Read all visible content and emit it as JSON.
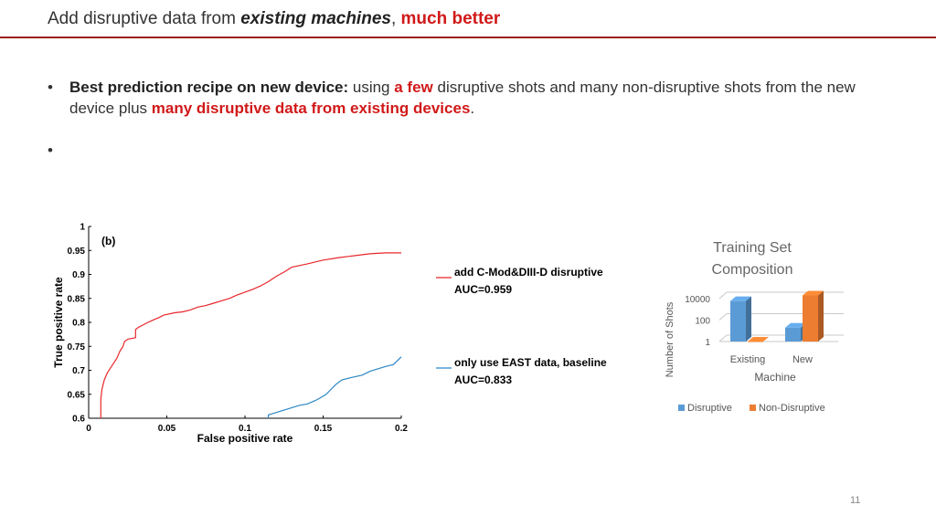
{
  "header": {
    "title_plain": "Add disruptive data from ",
    "title_emphasis": "existing machines",
    "title_comma": ", ",
    "title_highlight": "much better"
  },
  "bullets": {
    "bullet_glyph": "•",
    "b1_bold": "Best prediction recipe on new device:",
    "b1_text1": " using ",
    "b1_red1": "a few",
    "b1_text2": " disruptive shots and many non-disruptive shots from the new device plus ",
    "b1_red2": "many disruptive data from existing devices",
    "b1_text3": "."
  },
  "page_number": "11",
  "colors": {
    "accent_red": "#d11919",
    "rule": "#9b1b1f",
    "roc_red": "#e8262b",
    "roc_blue": "#2b86c5",
    "bar_blue": "#5b9bd5",
    "bar_orange": "#ed7d31"
  },
  "chart_data": [
    {
      "type": "line",
      "panel_label": "(b)",
      "xlabel": "False positive rate",
      "ylabel": "True positive rate",
      "xlim": [
        0,
        0.2
      ],
      "ylim": [
        0.6,
        1.0
      ],
      "x_ticks": [
        "0",
        "0.05",
        "0.1",
        "0.15",
        "0.2"
      ],
      "y_ticks": [
        "0.6",
        "0.65",
        "0.7",
        "0.75",
        "0.8",
        "0.85",
        "0.9",
        "0.95",
        "1"
      ],
      "grid": false,
      "series": [
        {
          "name": "add C-Mod&DIII-D disruptive",
          "auc_label": "AUC=0.959",
          "color": "#e8262b",
          "points": [
            [
              0.0078,
              0.6
            ],
            [
              0.0078,
              0.64
            ],
            [
              0.0085,
              0.66
            ],
            [
              0.01,
              0.68
            ],
            [
              0.012,
              0.695
            ],
            [
              0.014,
              0.705
            ],
            [
              0.016,
              0.715
            ],
            [
              0.018,
              0.725
            ],
            [
              0.02,
              0.74
            ],
            [
              0.022,
              0.75
            ],
            [
              0.023,
              0.76
            ],
            [
              0.025,
              0.765
            ],
            [
              0.03,
              0.768
            ],
            [
              0.03,
              0.78
            ],
            [
              0.03,
              0.785
            ],
            [
              0.032,
              0.79
            ],
            [
              0.035,
              0.795
            ],
            [
              0.038,
              0.8
            ],
            [
              0.04,
              0.803
            ],
            [
              0.042,
              0.806
            ],
            [
              0.045,
              0.81
            ],
            [
              0.048,
              0.815
            ],
            [
              0.055,
              0.82
            ],
            [
              0.06,
              0.822
            ],
            [
              0.065,
              0.826
            ],
            [
              0.07,
              0.832
            ],
            [
              0.075,
              0.835
            ],
            [
              0.08,
              0.84
            ],
            [
              0.085,
              0.845
            ],
            [
              0.09,
              0.85
            ],
            [
              0.095,
              0.857
            ],
            [
              0.1,
              0.863
            ],
            [
              0.105,
              0.869
            ],
            [
              0.11,
              0.876
            ],
            [
              0.115,
              0.885
            ],
            [
              0.12,
              0.896
            ],
            [
              0.125,
              0.905
            ],
            [
              0.13,
              0.915
            ],
            [
              0.14,
              0.922
            ],
            [
              0.15,
              0.93
            ],
            [
              0.16,
              0.935
            ],
            [
              0.17,
              0.939
            ],
            [
              0.18,
              0.943
            ],
            [
              0.19,
              0.945
            ],
            [
              0.2,
              0.945
            ]
          ]
        },
        {
          "name": "only use EAST data, baseline",
          "auc_label": "AUC=0.833",
          "color": "#2b86c5",
          "points": [
            [
              0.115,
              0.6
            ],
            [
              0.115,
              0.607
            ],
            [
              0.12,
              0.612
            ],
            [
              0.125,
              0.617
            ],
            [
              0.13,
              0.622
            ],
            [
              0.135,
              0.627
            ],
            [
              0.14,
              0.63
            ],
            [
              0.145,
              0.637
            ],
            [
              0.148,
              0.642
            ],
            [
              0.152,
              0.65
            ],
            [
              0.155,
              0.66
            ],
            [
              0.158,
              0.67
            ],
            [
              0.162,
              0.68
            ],
            [
              0.168,
              0.685
            ],
            [
              0.175,
              0.69
            ],
            [
              0.18,
              0.698
            ],
            [
              0.185,
              0.703
            ],
            [
              0.19,
              0.708
            ],
            [
              0.195,
              0.712
            ],
            [
              0.2,
              0.728
            ]
          ]
        }
      ]
    },
    {
      "type": "bar",
      "title": "Training Set Composition",
      "xlabel": "Machine",
      "ylabel": "Number of Shots",
      "scale": "log",
      "y_ticks": [
        "1",
        "100",
        "10000"
      ],
      "categories": [
        "Existing",
        "New"
      ],
      "series": [
        {
          "name": "Disruptive",
          "color": "#5b9bd5",
          "values": [
            6000,
            20
          ]
        },
        {
          "name": "Non-Disruptive",
          "color": "#ed7d31",
          "values": [
            1,
            20000
          ]
        }
      ],
      "legend_position": "bottom"
    }
  ]
}
